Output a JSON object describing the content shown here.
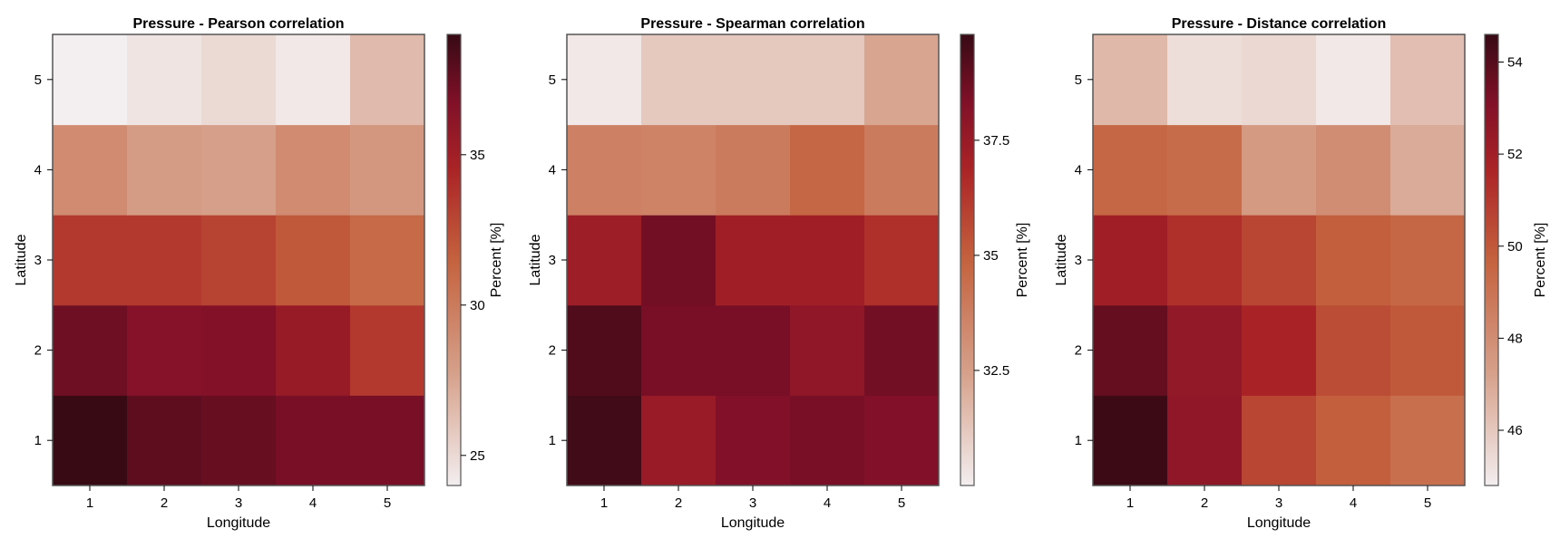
{
  "chart_data": [
    {
      "type": "heatmap",
      "title": "Pressure - Pearson correlation",
      "xlabel": "Longitude",
      "ylabel": "Latitude",
      "colorbar_label": "Percent [%]",
      "x": [
        1,
        2,
        3,
        4,
        5
      ],
      "y": [
        1,
        2,
        3,
        4,
        5
      ],
      "values": [
        [
          39.0,
          37.8,
          37.5,
          37.0,
          37.0
        ],
        [
          37.3,
          36.5,
          36.6,
          35.5,
          33.5
        ],
        [
          33.5,
          33.5,
          33.0,
          32.0,
          31.0
        ],
        [
          29.0,
          28.0,
          27.8,
          29.0,
          28.3
        ],
        [
          24.0,
          24.5,
          25.0,
          24.3,
          26.5
        ]
      ],
      "colorbar_range": [
        24,
        39
      ],
      "colorbar_ticks": [
        25,
        30,
        35
      ]
    },
    {
      "type": "heatmap",
      "title": "Pressure - Spearman correlation",
      "xlabel": "Longitude",
      "ylabel": "Latitude",
      "colorbar_label": "Percent [%]",
      "x": [
        1,
        2,
        3,
        4,
        5
      ],
      "y": [
        1,
        2,
        3,
        4,
        5
      ],
      "values": [
        [
          39.6,
          37.5,
          38.3,
          38.5,
          38.3
        ],
        [
          39.3,
          38.5,
          38.5,
          37.8,
          38.6
        ],
        [
          37.3,
          38.6,
          37.2,
          37.2,
          36.5
        ],
        [
          33.7,
          33.6,
          33.9,
          34.7,
          33.9
        ],
        [
          30.2,
          31.2,
          31.2,
          31.2,
          32.3
        ]
      ],
      "colorbar_range": [
        30.0,
        39.8
      ],
      "colorbar_ticks": [
        32.5,
        35.0,
        37.5
      ]
    },
    {
      "type": "heatmap",
      "title": "Pressure - Distance correlation",
      "xlabel": "Longitude",
      "ylabel": "Latitude",
      "colorbar_label": "Percent [%]",
      "x": [
        1,
        2,
        3,
        4,
        5
      ],
      "y": [
        1,
        2,
        3,
        4,
        5
      ],
      "values": [
        [
          54.5,
          52.6,
          50.6,
          49.8,
          49.2
        ],
        [
          53.7,
          52.5,
          51.7,
          50.4,
          50.0
        ],
        [
          52.0,
          51.3,
          50.6,
          49.8,
          49.5
        ],
        [
          49.5,
          49.3,
          47.5,
          48.0,
          46.9
        ],
        [
          46.5,
          45.3,
          45.5,
          45.0,
          46.3
        ]
      ],
      "colorbar_range": [
        44.8,
        54.6
      ],
      "colorbar_ticks": [
        46,
        48,
        50,
        52,
        54
      ]
    }
  ]
}
